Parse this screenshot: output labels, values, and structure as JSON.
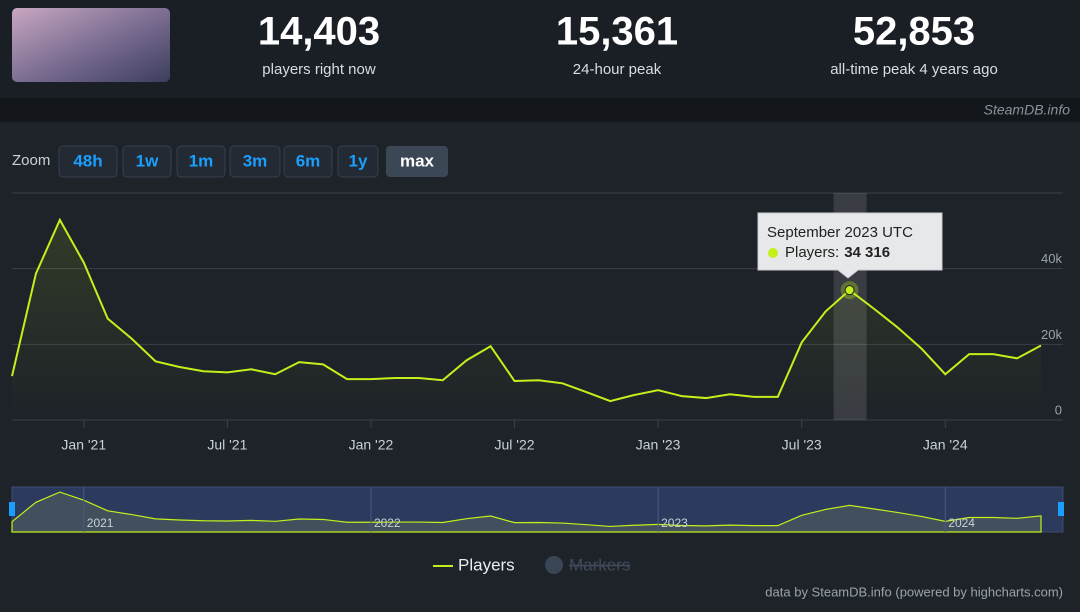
{
  "header": {
    "stats": [
      {
        "value": "14,403",
        "label": "players right now"
      },
      {
        "value": "15,361",
        "label": "24-hour peak"
      },
      {
        "value": "52,853",
        "label": "all-time peak 4 years ago"
      }
    ],
    "watermark": "SteamDB.info"
  },
  "zoom": {
    "label": "Zoom",
    "buttons": [
      "48h",
      "1w",
      "1m",
      "3m",
      "6m",
      "1y",
      "max"
    ],
    "selected": "max"
  },
  "chart_data": {
    "type": "line",
    "x": [
      "2020-10",
      "2020-11",
      "2020-12",
      "2021-01",
      "2021-02",
      "2021-03",
      "2021-04",
      "2021-05",
      "2021-06",
      "2021-07",
      "2021-08",
      "2021-09",
      "2021-10",
      "2021-11",
      "2021-12",
      "2022-01",
      "2022-02",
      "2022-03",
      "2022-04",
      "2022-05",
      "2022-06",
      "2022-07",
      "2022-08",
      "2022-09",
      "2022-10",
      "2022-11",
      "2022-12",
      "2023-01",
      "2023-02",
      "2023-03",
      "2023-04",
      "2023-05",
      "2023-06",
      "2023-07",
      "2023-08",
      "2023-09",
      "2023-10",
      "2023-11",
      "2023-12",
      "2024-01",
      "2024-02",
      "2024-03",
      "2024-04",
      "2024-05"
    ],
    "series": [
      {
        "name": "Players",
        "color": "#c3f01b",
        "values": [
          11600,
          38700,
          52900,
          41600,
          26800,
          21500,
          15500,
          14000,
          12900,
          12600,
          13400,
          12100,
          15300,
          14700,
          10800,
          10800,
          11100,
          11100,
          10500,
          15800,
          19500,
          10300,
          10500,
          9700,
          7400,
          5000,
          6600,
          7900,
          6300,
          5800,
          6800,
          6100,
          6100,
          20500,
          28700,
          34316,
          29500,
          24500,
          18900,
          12100,
          17400,
          17400,
          16300,
          19700
        ]
      }
    ],
    "xticks": [
      {
        "value": "2021-01",
        "label": "Jan '21"
      },
      {
        "value": "2021-07",
        "label": "Jul '21"
      },
      {
        "value": "2022-01",
        "label": "Jan '22"
      },
      {
        "value": "2022-07",
        "label": "Jul '22"
      },
      {
        "value": "2023-01",
        "label": "Jan '23"
      },
      {
        "value": "2023-07",
        "label": "Jul '23"
      },
      {
        "value": "2024-01",
        "label": "Jan '24"
      }
    ],
    "ylim": [
      0,
      60000
    ],
    "yticks": [
      {
        "value": 0,
        "label": "0"
      },
      {
        "value": 20000,
        "label": "20k"
      },
      {
        "value": 40000,
        "label": "40k"
      }
    ],
    "grid": true,
    "tooltip": {
      "index": 35,
      "title": "September 2023 UTC",
      "series_label": "Players:",
      "value_label": "34 316"
    },
    "navigator_labels": [
      "2021",
      "2022",
      "2023",
      "2024"
    ],
    "hidden_legend_items": [
      "Markers"
    ]
  },
  "footer": {
    "credit": "data by SteamDB.info (powered by highcharts.com)"
  }
}
